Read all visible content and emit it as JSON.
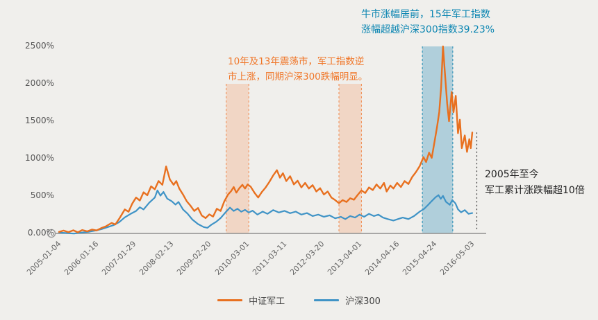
{
  "chart_data": {
    "type": "line",
    "x_max": 11,
    "y_max": 2500,
    "x_tick_labels": [
      "2005-01-04",
      "2006-01-16",
      "2007-01-29",
      "2008-02-13",
      "2009-02-20",
      "2010-03-01",
      "2011-03-11",
      "2012-03-20",
      "2013-04-01",
      "2014-04-16",
      "2015-04-24",
      "2016-05-03"
    ],
    "y_ticks": [
      {
        "label": "0.00%",
        "value": 0
      },
      {
        "label": "500%",
        "value": 500
      },
      {
        "label": "1000%",
        "value": 1000
      },
      {
        "label": "1500%",
        "value": 1500
      },
      {
        "label": "2000%",
        "value": 2000
      },
      {
        "label": "2500%",
        "value": 2500
      }
    ],
    "series": [
      {
        "name": "中证军工",
        "color": "#e8701f",
        "points": [
          [
            0,
            20
          ],
          [
            0.12,
            38
          ],
          [
            0.25,
            18
          ],
          [
            0.38,
            42
          ],
          [
            0.5,
            15
          ],
          [
            0.62,
            45
          ],
          [
            0.75,
            28
          ],
          [
            0.88,
            52
          ],
          [
            1,
            40
          ],
          [
            1.12,
            70
          ],
          [
            1.25,
            95
          ],
          [
            1.4,
            140
          ],
          [
            1.5,
            120
          ],
          [
            1.62,
            210
          ],
          [
            1.75,
            320
          ],
          [
            1.85,
            290
          ],
          [
            1.95,
            400
          ],
          [
            2.05,
            480
          ],
          [
            2.15,
            440
          ],
          [
            2.25,
            550
          ],
          [
            2.35,
            510
          ],
          [
            2.45,
            630
          ],
          [
            2.55,
            590
          ],
          [
            2.65,
            700
          ],
          [
            2.75,
            650
          ],
          [
            2.85,
            895
          ],
          [
            2.95,
            720
          ],
          [
            3.05,
            650
          ],
          [
            3.12,
            700
          ],
          [
            3.2,
            600
          ],
          [
            3.3,
            520
          ],
          [
            3.4,
            430
          ],
          [
            3.5,
            370
          ],
          [
            3.6,
            300
          ],
          [
            3.7,
            340
          ],
          [
            3.8,
            240
          ],
          [
            3.9,
            205
          ],
          [
            4,
            255
          ],
          [
            4.1,
            225
          ],
          [
            4.2,
            330
          ],
          [
            4.3,
            300
          ],
          [
            4.4,
            430
          ],
          [
            4.5,
            520
          ],
          [
            4.58,
            565
          ],
          [
            4.65,
            620
          ],
          [
            4.72,
            545
          ],
          [
            4.8,
            605
          ],
          [
            4.88,
            650
          ],
          [
            4.95,
            600
          ],
          [
            5.02,
            655
          ],
          [
            5.1,
            625
          ],
          [
            5.2,
            545
          ],
          [
            5.3,
            480
          ],
          [
            5.4,
            555
          ],
          [
            5.5,
            615
          ],
          [
            5.6,
            690
          ],
          [
            5.7,
            775
          ],
          [
            5.8,
            845
          ],
          [
            5.88,
            745
          ],
          [
            5.96,
            805
          ],
          [
            6.05,
            700
          ],
          [
            6.15,
            765
          ],
          [
            6.25,
            655
          ],
          [
            6.35,
            705
          ],
          [
            6.45,
            615
          ],
          [
            6.55,
            675
          ],
          [
            6.65,
            600
          ],
          [
            6.75,
            645
          ],
          [
            6.85,
            560
          ],
          [
            6.95,
            605
          ],
          [
            7.05,
            520
          ],
          [
            7.15,
            560
          ],
          [
            7.25,
            480
          ],
          [
            7.35,
            445
          ],
          [
            7.45,
            405
          ],
          [
            7.55,
            445
          ],
          [
            7.65,
            420
          ],
          [
            7.75,
            470
          ],
          [
            7.85,
            450
          ],
          [
            7.95,
            515
          ],
          [
            8.05,
            575
          ],
          [
            8.15,
            540
          ],
          [
            8.25,
            615
          ],
          [
            8.35,
            580
          ],
          [
            8.45,
            655
          ],
          [
            8.55,
            600
          ],
          [
            8.65,
            675
          ],
          [
            8.72,
            560
          ],
          [
            8.82,
            640
          ],
          [
            8.9,
            600
          ],
          [
            9,
            675
          ],
          [
            9.1,
            620
          ],
          [
            9.2,
            700
          ],
          [
            9.3,
            660
          ],
          [
            9.4,
            755
          ],
          [
            9.5,
            820
          ],
          [
            9.6,
            900
          ],
          [
            9.7,
            1020
          ],
          [
            9.77,
            955
          ],
          [
            9.85,
            1080
          ],
          [
            9.92,
            1010
          ],
          [
            10,
            1240
          ],
          [
            10.06,
            1420
          ],
          [
            10.12,
            1620
          ],
          [
            10.17,
            1950
          ],
          [
            10.22,
            2500
          ],
          [
            10.28,
            2080
          ],
          [
            10.33,
            1740
          ],
          [
            10.38,
            1500
          ],
          [
            10.45,
            1890
          ],
          [
            10.5,
            1620
          ],
          [
            10.56,
            1840
          ],
          [
            10.62,
            1340
          ],
          [
            10.67,
            1520
          ],
          [
            10.72,
            1140
          ],
          [
            10.8,
            1310
          ],
          [
            10.86,
            1090
          ],
          [
            10.92,
            1260
          ],
          [
            10.96,
            1140
          ],
          [
            11,
            1350
          ]
        ]
      },
      {
        "name": "沪深300",
        "color": "#3f93c6",
        "points": [
          [
            0,
            12
          ],
          [
            0.2,
            5
          ],
          [
            0.4,
            -2
          ],
          [
            0.6,
            12
          ],
          [
            0.8,
            22
          ],
          [
            1,
            42
          ],
          [
            1.15,
            60
          ],
          [
            1.3,
            85
          ],
          [
            1.45,
            110
          ],
          [
            1.6,
            150
          ],
          [
            1.75,
            215
          ],
          [
            1.9,
            260
          ],
          [
            2.05,
            300
          ],
          [
            2.15,
            350
          ],
          [
            2.25,
            320
          ],
          [
            2.4,
            410
          ],
          [
            2.55,
            480
          ],
          [
            2.62,
            575
          ],
          [
            2.7,
            505
          ],
          [
            2.78,
            555
          ],
          [
            2.88,
            465
          ],
          [
            3,
            430
          ],
          [
            3.1,
            385
          ],
          [
            3.18,
            420
          ],
          [
            3.3,
            320
          ],
          [
            3.42,
            265
          ],
          [
            3.55,
            185
          ],
          [
            3.7,
            125
          ],
          [
            3.85,
            85
          ],
          [
            3.95,
            75
          ],
          [
            4.05,
            115
          ],
          [
            4.18,
            155
          ],
          [
            4.3,
            205
          ],
          [
            4.42,
            275
          ],
          [
            4.55,
            345
          ],
          [
            4.65,
            300
          ],
          [
            4.75,
            330
          ],
          [
            4.85,
            290
          ],
          [
            4.95,
            315
          ],
          [
            5.05,
            280
          ],
          [
            5.15,
            305
          ],
          [
            5.28,
            252
          ],
          [
            5.42,
            292
          ],
          [
            5.55,
            262
          ],
          [
            5.7,
            312
          ],
          [
            5.85,
            280
          ],
          [
            6,
            302
          ],
          [
            6.15,
            270
          ],
          [
            6.3,
            292
          ],
          [
            6.45,
            252
          ],
          [
            6.6,
            272
          ],
          [
            6.75,
            232
          ],
          [
            6.9,
            252
          ],
          [
            7.05,
            222
          ],
          [
            7.2,
            242
          ],
          [
            7.35,
            202
          ],
          [
            7.5,
            222
          ],
          [
            7.62,
            192
          ],
          [
            7.75,
            232
          ],
          [
            7.88,
            212
          ],
          [
            8,
            252
          ],
          [
            8.12,
            222
          ],
          [
            8.25,
            262
          ],
          [
            8.38,
            232
          ],
          [
            8.5,
            252
          ],
          [
            8.62,
            212
          ],
          [
            8.75,
            192
          ],
          [
            8.9,
            172
          ],
          [
            9.02,
            192
          ],
          [
            9.15,
            212
          ],
          [
            9.3,
            192
          ],
          [
            9.45,
            232
          ],
          [
            9.6,
            292
          ],
          [
            9.72,
            330
          ],
          [
            9.82,
            380
          ],
          [
            9.92,
            432
          ],
          [
            10.02,
            482
          ],
          [
            10.1,
            512
          ],
          [
            10.16,
            462
          ],
          [
            10.22,
            502
          ],
          [
            10.3,
            422
          ],
          [
            10.4,
            382
          ],
          [
            10.47,
            445
          ],
          [
            10.55,
            402
          ],
          [
            10.62,
            322
          ],
          [
            10.7,
            282
          ],
          [
            10.8,
            312
          ],
          [
            10.9,
            262
          ],
          [
            11,
            272
          ]
        ]
      }
    ],
    "bands": [
      {
        "name": "range-2010",
        "from": 4.45,
        "to": 5.05,
        "top": 2000,
        "fill": "rgba(243,152,97,0.28)",
        "edge": "#f08a4e"
      },
      {
        "name": "range-2013",
        "from": 7.45,
        "to": 8.05,
        "top": 2000,
        "fill": "rgba(243,152,97,0.28)",
        "edge": "#f08a4e"
      },
      {
        "name": "range-2015",
        "from": 9.67,
        "to": 10.48,
        "top": 2500,
        "fill": "rgba(123,180,206,0.55)",
        "edge": "#1d8ab2"
      }
    ],
    "indicator": {
      "x": 11.12,
      "y_from": 1350,
      "y_to": 30
    },
    "annotations": {
      "volatile": {
        "line1": "10年及13年震荡市，军工指数逆",
        "line2": "市上涨，同期沪深300跌幅明显。",
        "color": "#f07628"
      },
      "bull": {
        "line1": "牛市涨幅居前，15年军工指数",
        "line2": "涨幅超越沪深300指数39.23%",
        "color": "#0c86b2"
      },
      "summary": {
        "line1": "2005年至今",
        "line2": "军工累计涨跌幅超10倍",
        "color": "#222222"
      }
    },
    "axis": {
      "line_color": "#8f8f8f",
      "label_color": "#666666"
    }
  }
}
